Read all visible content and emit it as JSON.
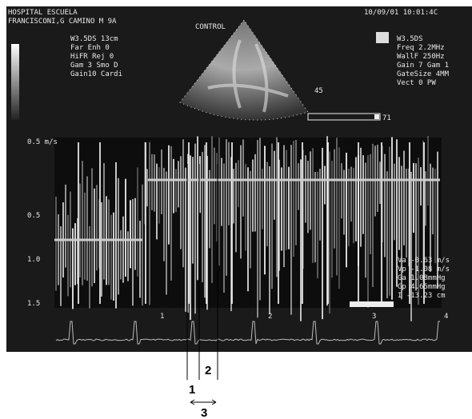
{
  "header": {
    "hospital": "HOSPITAL ESCUELA",
    "patient": "FRANCISCONI,G CAMINO M 9A",
    "label": "CONTROL",
    "datetime": "10/09/01 10:01:4C"
  },
  "left_settings": [
    "W3.5DS  13cm",
    "Far     Enh 0",
    "HiFR    Rej 0",
    "Gam 3   Smo D",
    "Gain10  Cardi"
  ],
  "right_settings": [
    "W3.5DS",
    "Freq 2.2MHz",
    "WallF 250Hz",
    "Gain 7 Gam 1",
    "GateSize 4MM",
    "Vect 0   PW"
  ],
  "sector_labels": {
    "angle": "45",
    "gain_bar": "71"
  },
  "velocity_scale": [
    "0.5 m/s",
    "0.5",
    "1.0",
    "1.5"
  ],
  "measurements": [
    "Va -0.63 m/s",
    "Vp -1.08 m/s",
    "Ga  1.08mmHg",
    "Gp  4.65mmHg",
    "I  -13.23 cm"
  ],
  "ecg_markers": [
    "1",
    "2",
    "3",
    "4"
  ],
  "annotations": [
    "1",
    "2",
    "3"
  ]
}
